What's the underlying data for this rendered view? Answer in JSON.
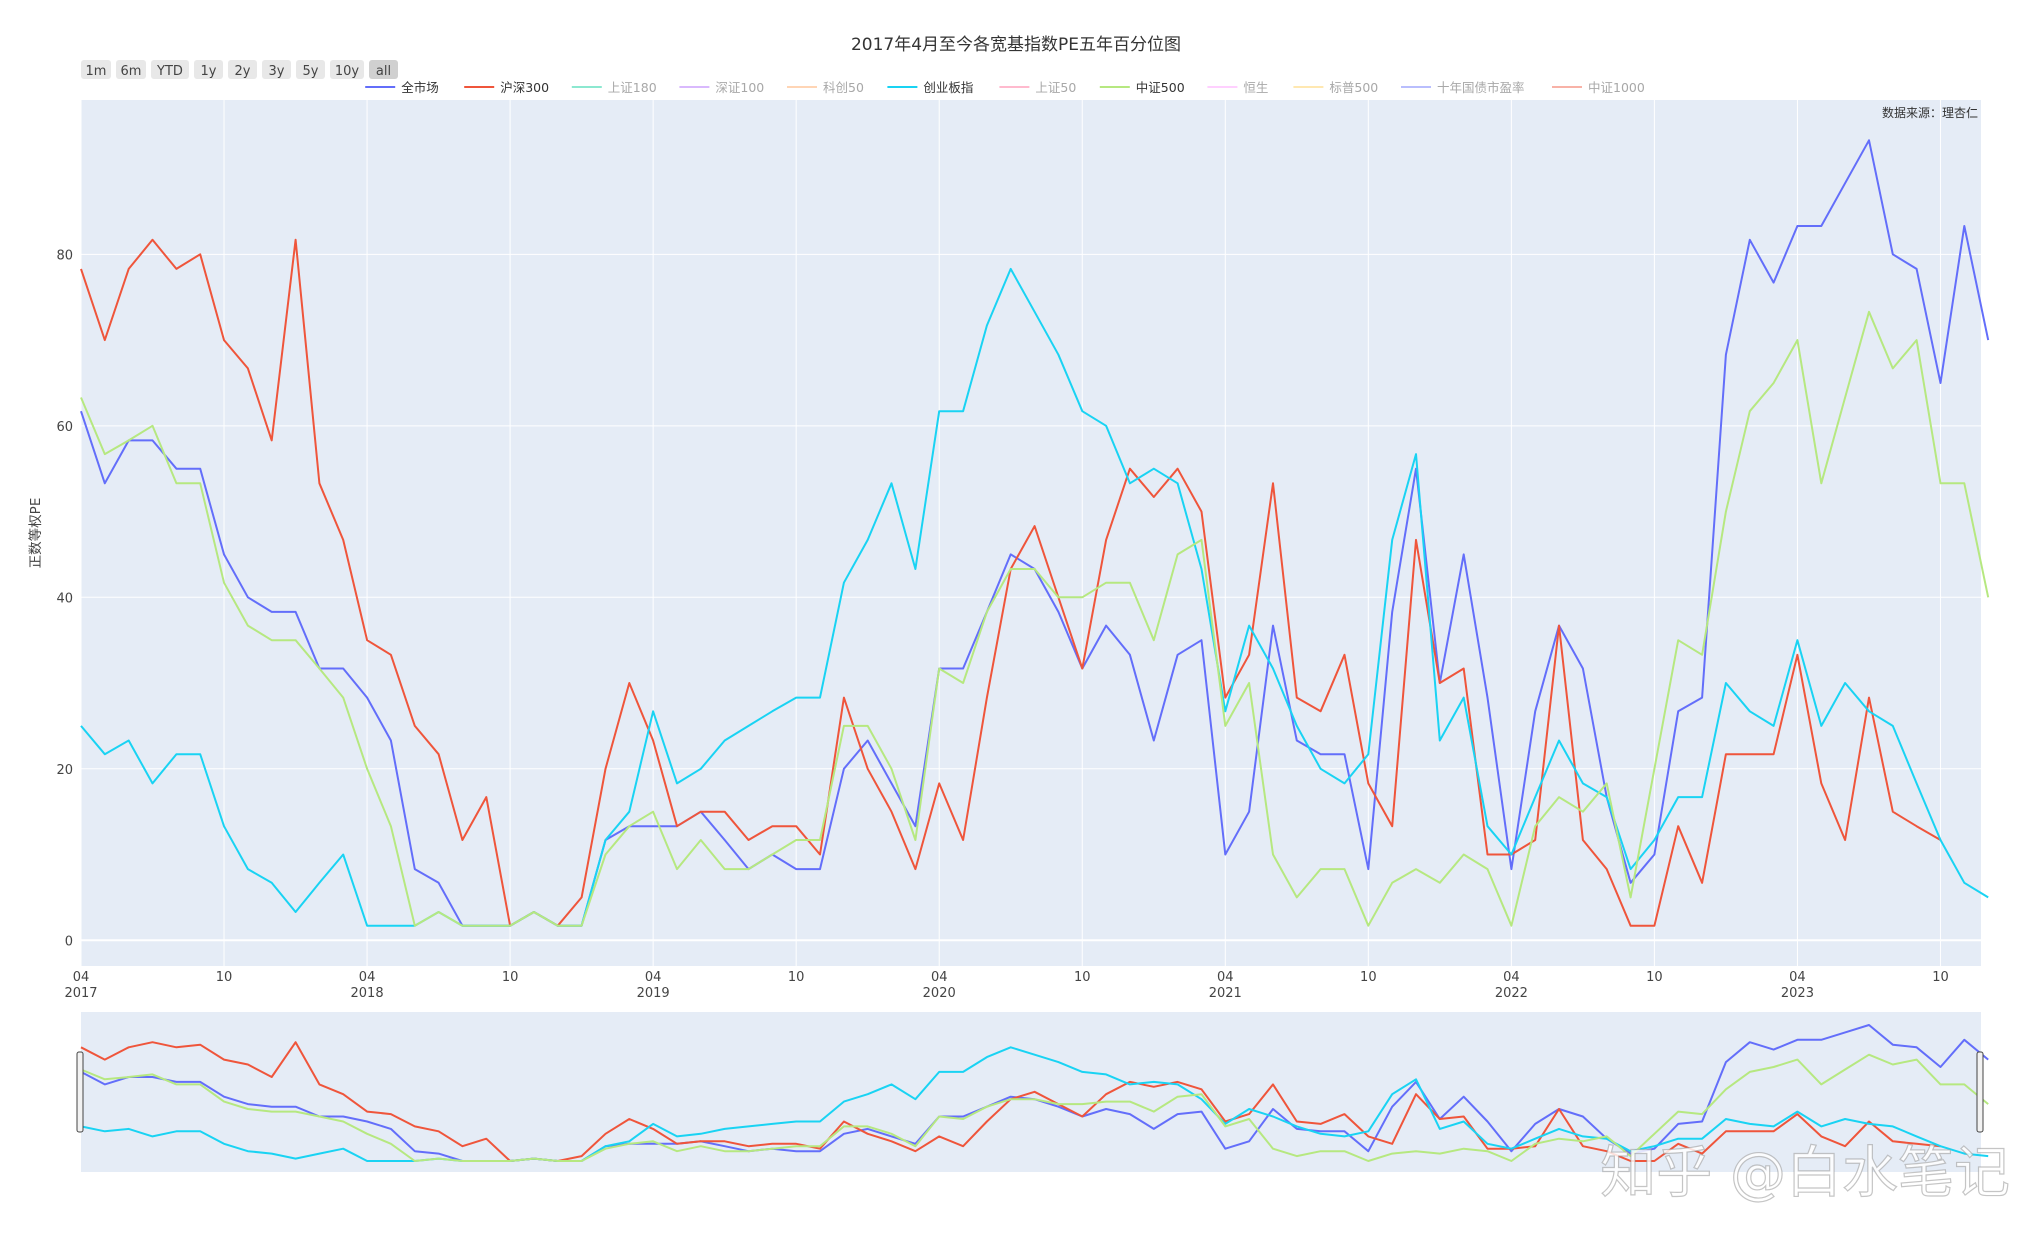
{
  "chart_data": {
    "type": "line",
    "title": "2017年4月至今各宽基指数PE五年百分位图",
    "xlabel": "",
    "ylabel": "正数等权PE",
    "source_note": "数据来源：理杏仁",
    "watermark": "知乎 @白水笔记",
    "x_start": "2017-04",
    "x_step_months": 1,
    "xlim": [
      "2017-04",
      "2023-12"
    ],
    "ylim": [
      -3,
      98
    ],
    "y_ticks": [
      0,
      20,
      40,
      60,
      80
    ],
    "x_ticks": [
      {
        "date": "2017-04",
        "label": "04",
        "year": "2017"
      },
      {
        "date": "2017-10",
        "label": "10",
        "year": ""
      },
      {
        "date": "2018-04",
        "label": "04",
        "year": "2018"
      },
      {
        "date": "2018-10",
        "label": "10",
        "year": ""
      },
      {
        "date": "2019-04",
        "label": "04",
        "year": "2019"
      },
      {
        "date": "2019-10",
        "label": "10",
        "year": ""
      },
      {
        "date": "2020-04",
        "label": "04",
        "year": "2020"
      },
      {
        "date": "2020-10",
        "label": "10",
        "year": ""
      },
      {
        "date": "2021-04",
        "label": "04",
        "year": "2021"
      },
      {
        "date": "2021-10",
        "label": "10",
        "year": ""
      },
      {
        "date": "2022-04",
        "label": "04",
        "year": "2022"
      },
      {
        "date": "2022-10",
        "label": "10",
        "year": ""
      },
      {
        "date": "2023-04",
        "label": "04",
        "year": "2023"
      },
      {
        "date": "2023-10",
        "label": "10",
        "year": ""
      }
    ],
    "grid": true,
    "legend_position": "top",
    "range_selector": [
      "1m",
      "6m",
      "YTD",
      "1y",
      "2y",
      "3y",
      "5y",
      "10y",
      "all"
    ],
    "range_selector_active": "all",
    "legend": [
      {
        "name": "全市场",
        "color": "#636efa",
        "visible": true
      },
      {
        "name": "沪深300",
        "color": "#ef553b",
        "visible": true
      },
      {
        "name": "上证180",
        "color": "#00cc96",
        "visible": false
      },
      {
        "name": "深证100",
        "color": "#ab63fa",
        "visible": false
      },
      {
        "name": "科创50",
        "color": "#ffa15a",
        "visible": false
      },
      {
        "name": "创业板指",
        "color": "#19d3f3",
        "visible": true
      },
      {
        "name": "上证50",
        "color": "#ff6692",
        "visible": false
      },
      {
        "name": "中证500",
        "color": "#b6e880",
        "visible": true
      },
      {
        "name": "恒生",
        "color": "#ff97ff",
        "visible": false
      },
      {
        "name": "标普500",
        "color": "#fecb52",
        "visible": false
      },
      {
        "name": "十年国债市盈率",
        "color": "#636efa",
        "visible": false
      },
      {
        "name": "中证1000",
        "color": "#ef553b",
        "visible": false
      }
    ],
    "series": [
      {
        "name": "全市场",
        "color": "#636efa",
        "values": [
          61.7,
          53.3,
          58.3,
          58.3,
          55,
          55,
          45,
          40,
          38.3,
          38.3,
          31.7,
          31.7,
          28.3,
          23.3,
          8.3,
          6.7,
          1.7,
          1.7,
          1.7,
          3.3,
          1.7,
          1.7,
          11.7,
          13.3,
          13.3,
          13.3,
          15,
          11.7,
          8.3,
          10,
          8.3,
          8.3,
          20,
          23.3,
          18.3,
          13.3,
          31.7,
          31.7,
          38.3,
          45,
          43.3,
          38.3,
          31.7,
          36.7,
          33.3,
          23.3,
          33.3,
          35,
          10,
          15,
          36.7,
          23.3,
          21.7,
          21.7,
          8.3,
          38.3,
          55,
          30,
          45,
          28.3,
          8.3,
          26.7,
          36.7,
          31.7,
          16.7,
          6.7,
          10,
          26.7,
          28.3,
          68.3,
          81.7,
          76.7,
          83.3,
          83.3,
          88.3,
          93.3,
          80,
          78.3,
          65,
          83.3,
          70
        ]
      },
      {
        "name": "沪深300",
        "color": "#ef553b",
        "values": [
          78.3,
          70,
          78.3,
          81.7,
          78.3,
          80,
          70,
          66.7,
          58.3,
          81.7,
          53.3,
          46.7,
          35,
          33.3,
          25,
          21.7,
          11.7,
          16.7,
          1.7,
          3.3,
          1.7,
          5,
          20,
          30,
          23.3,
          13.3,
          15,
          15,
          11.7,
          13.3,
          13.3,
          10,
          28.3,
          20,
          15,
          8.3,
          18.3,
          11.7,
          28.3,
          43.3,
          48.3,
          40,
          31.7,
          46.7,
          55,
          51.7,
          55,
          50,
          28.3,
          33.3,
          53.3,
          28.3,
          26.7,
          33.3,
          18.3,
          13.3,
          46.7,
          30,
          31.7,
          10,
          10,
          11.7,
          36.7,
          11.7,
          8.3,
          1.7,
          1.7,
          13.3,
          6.7,
          21.7,
          21.7,
          21.7,
          33.3,
          18.3,
          11.7,
          28.3,
          15,
          13.3,
          11.7,
          null,
          null
        ]
      },
      {
        "name": "创业板指",
        "color": "#19d3f3",
        "values": [
          25,
          21.7,
          23.3,
          18.3,
          21.7,
          21.7,
          13.3,
          8.3,
          6.7,
          3.3,
          6.7,
          10,
          1.7,
          1.7,
          1.7,
          3.3,
          1.7,
          1.7,
          1.7,
          3.3,
          1.7,
          1.7,
          11.7,
          15,
          26.7,
          18.3,
          20,
          23.3,
          25,
          26.7,
          28.3,
          28.3,
          41.7,
          46.7,
          53.3,
          43.3,
          61.7,
          61.7,
          71.7,
          78.3,
          73.3,
          68.3,
          61.7,
          60,
          53.3,
          55,
          53.3,
          43.3,
          26.7,
          36.7,
          31.7,
          25,
          20,
          18.3,
          21.7,
          46.7,
          56.7,
          23.3,
          28.3,
          13.3,
          10,
          16.7,
          23.3,
          18.3,
          16.7,
          8.3,
          11.7,
          16.7,
          16.7,
          30,
          26.7,
          25,
          35,
          25,
          30,
          26.7,
          25,
          18.3,
          11.7,
          6.7,
          5
        ]
      },
      {
        "name": "中证500",
        "color": "#b6e880",
        "values": [
          63.3,
          56.7,
          58.3,
          60,
          53.3,
          53.3,
          41.7,
          36.7,
          35,
          35,
          31.7,
          28.3,
          20,
          13.3,
          1.7,
          3.3,
          1.7,
          1.7,
          1.7,
          3.3,
          1.7,
          1.7,
          10,
          13.3,
          15,
          8.3,
          11.7,
          8.3,
          8.3,
          10,
          11.7,
          11.7,
          25,
          25,
          20,
          11.7,
          31.7,
          30,
          38.3,
          43.3,
          43.3,
          40,
          40,
          41.7,
          41.7,
          35,
          45,
          46.7,
          25,
          30,
          10,
          5,
          8.3,
          8.3,
          1.7,
          6.7,
          8.3,
          6.7,
          10,
          8.3,
          1.7,
          13.3,
          16.7,
          15,
          18.3,
          5,
          20,
          35,
          33.3,
          50,
          61.7,
          65,
          70,
          53.3,
          63.3,
          73.3,
          66.7,
          70,
          53.3,
          53.3,
          40
        ]
      }
    ]
  }
}
